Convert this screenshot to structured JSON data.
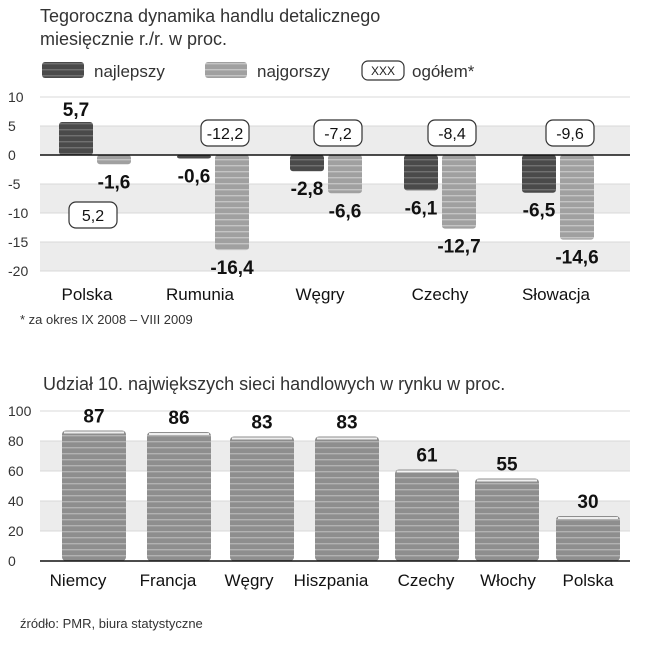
{
  "chart_data": [
    {
      "type": "bar",
      "title": "Tegoroczna dynamika handlu detalicznego",
      "subtitle": "miesięcznie r./r. w proc.",
      "categories": [
        "Polska",
        "Rumunia",
        "Węgry",
        "Czechy",
        "Słowacja"
      ],
      "series": [
        {
          "name": "najlepszy",
          "values": [
            5.7,
            -0.6,
            -2.8,
            -6.1,
            -6.5
          ]
        },
        {
          "name": "najgorszy",
          "values": [
            -1.6,
            -16.4,
            -6.6,
            -12.7,
            -14.6
          ]
        }
      ],
      "overall": {
        "name": "ogółem*",
        "legend_box": "XXX",
        "values": [
          5.2,
          -12.2,
          -7.2,
          -8.4,
          -9.6
        ]
      },
      "y_ticks": [
        10,
        5,
        0,
        -5,
        -10,
        -15,
        -20
      ],
      "ylim": [
        -20,
        10
      ],
      "grid": true,
      "legend_position": "top",
      "footnote": "* za okres IX 2008 – VIII 2009",
      "colors": {
        "best": "#555555",
        "worst": "#a8a8a8"
      }
    },
    {
      "type": "bar",
      "title": "Udział 10. największych sieci handlowych w rynku w proc.",
      "categories": [
        "Niemcy",
        "Francja",
        "Węgry",
        "Hiszpania",
        "Czechy",
        "Włochy",
        "Polska"
      ],
      "values": [
        87,
        86,
        83,
        83,
        61,
        55,
        30
      ],
      "y_ticks": [
        100,
        80,
        60,
        40,
        20,
        0
      ],
      "ylim": [
        0,
        100
      ],
      "grid": true,
      "colors": {
        "bar": "#9a9a9a"
      }
    }
  ],
  "source": "źródło: PMR, biura statystyczne"
}
